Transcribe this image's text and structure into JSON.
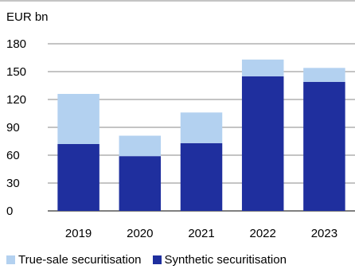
{
  "chart_data": {
    "type": "bar",
    "stacked": true,
    "unit_label": "EUR bn",
    "categories": [
      "2019",
      "2020",
      "2021",
      "2022",
      "2023"
    ],
    "series": [
      {
        "name": "Synthetic securitisation",
        "color": "#1f2f9e",
        "values": [
          72,
          59,
          73,
          145,
          139
        ]
      },
      {
        "name": "True-sale securitisation",
        "color": "#b3d1f0",
        "values": [
          54,
          22,
          33,
          18,
          15
        ]
      }
    ],
    "ylim": [
      0,
      180
    ],
    "yticks": [
      0,
      30,
      60,
      90,
      120,
      150,
      180
    ],
    "grid": true,
    "legend_position": "bottom"
  }
}
